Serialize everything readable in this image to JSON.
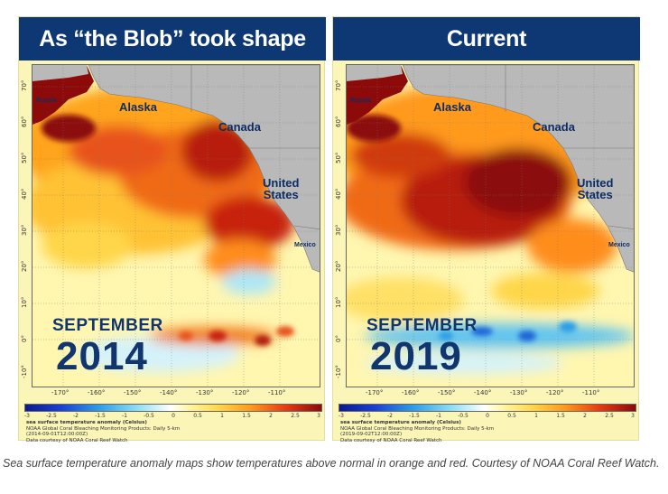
{
  "panels": [
    {
      "title": "As “the Blob” took shape",
      "month": "SEPTEMBER",
      "year": "2014",
      "legend": {
        "title": "sea surface temperature anomaly (Celsius)",
        "product": "NOAA Global Coral Bleaching Monitoring Products: Daily 5-km",
        "date": "(2014-09-01T12:00:00Z)",
        "credit": "Data courtesy of NOAA Coral Reef Watch"
      }
    },
    {
      "title": "Current",
      "month": "SEPTEMBER",
      "year": "2019",
      "legend": {
        "title": "sea surface temperature anomaly (Celsius)",
        "product": "NOAA Global Coral Bleaching Monitoring Products: Daily 5-km",
        "date": "(2019-09-02T12:00:00Z)",
        "credit": "Data courtesy of NOAA Coral Reef Watch"
      }
    }
  ],
  "map_labels": {
    "russia": "Russia",
    "alaska": "Alaska",
    "canada": "Canada",
    "united_states_1": "United",
    "united_states_2": "States",
    "mexico": "Mexico"
  },
  "lat_ticks": [
    "70°",
    "60°",
    "50°",
    "40°",
    "30°",
    "20°",
    "10°",
    "0°",
    "-10°"
  ],
  "lon_ticks": [
    "-170°",
    "-160°",
    "-150°",
    "-140°",
    "-130°",
    "-120°",
    "-110°"
  ],
  "colorbar_ticks": [
    "-3",
    "-2.5",
    "-2",
    "-1.5",
    "-1",
    "-0.5",
    "0",
    "0.5",
    "1",
    "1.5",
    "2",
    "2.5",
    "3"
  ],
  "colors": {
    "title_bg": "#0d3873",
    "label_text": "#0d2d66",
    "land": "#b9b9b9",
    "anomaly_hot": "#8c0a0a",
    "anomaly_warm": "#ff9a1a",
    "anomaly_neutral": "#fff7a6",
    "anomaly_cold": "#2c9de8"
  },
  "caption": "Sea surface temperature anomaly maps show temperatures above normal in orange and red. Courtesy of NOAA Coral Reef Watch."
}
